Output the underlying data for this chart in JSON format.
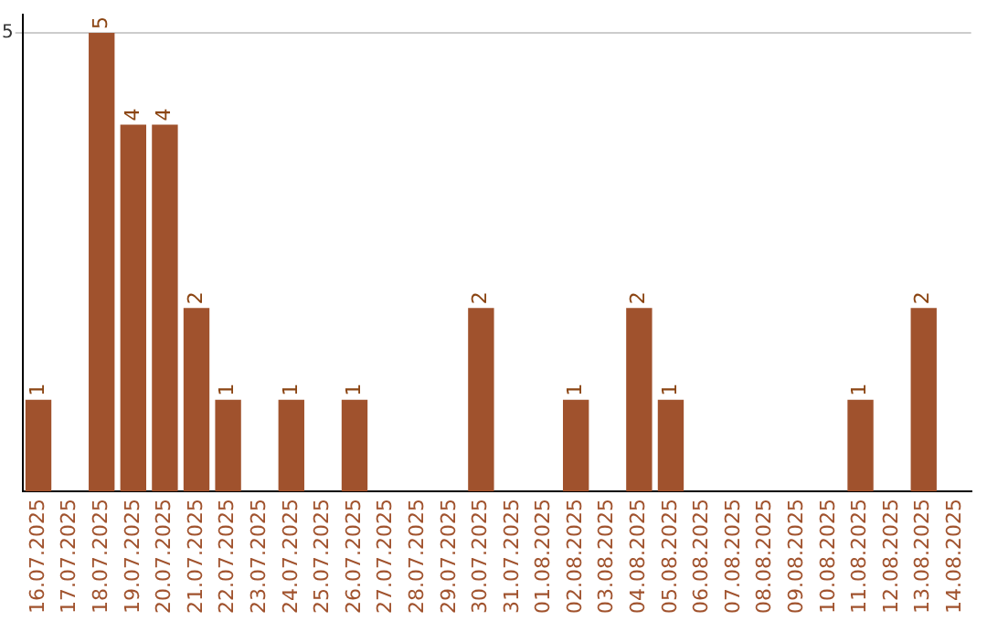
{
  "chart_data": {
    "type": "bar",
    "categories": [
      "16.07.2025",
      "17.07.2025",
      "18.07.2025",
      "19.07.2025",
      "20.07.2025",
      "21.07.2025",
      "22.07.2025",
      "23.07.2025",
      "24.07.2025",
      "25.07.2025",
      "26.07.2025",
      "27.07.2025",
      "28.07.2025",
      "29.07.2025",
      "30.07.2025",
      "31.07.2025",
      "01.08.2025",
      "02.08.2025",
      "03.08.2025",
      "04.08.2025",
      "05.08.2025",
      "06.08.2025",
      "07.08.2025",
      "08.08.2025",
      "09.08.2025",
      "10.08.2025",
      "11.08.2025",
      "12.08.2025",
      "13.08.2025",
      "14.08.2025"
    ],
    "values": [
      1,
      0,
      5,
      4,
      4,
      2,
      1,
      0,
      1,
      0,
      1,
      0,
      0,
      0,
      2,
      0,
      0,
      1,
      0,
      2,
      1,
      0,
      0,
      0,
      0,
      0,
      1,
      0,
      2,
      0
    ],
    "value_labels": [
      "1",
      null,
      "5",
      "4",
      "4",
      "2",
      "1",
      null,
      "1",
      null,
      "1",
      null,
      null,
      null,
      "2",
      null,
      null,
      "1",
      null,
      "2",
      "1",
      null,
      null,
      null,
      null,
      null,
      "1",
      null,
      "2",
      null
    ],
    "color": "#a0522d",
    "ylim": [
      0,
      5.2
    ],
    "yticks": [
      5
    ],
    "grid": "y",
    "legend": false
  }
}
